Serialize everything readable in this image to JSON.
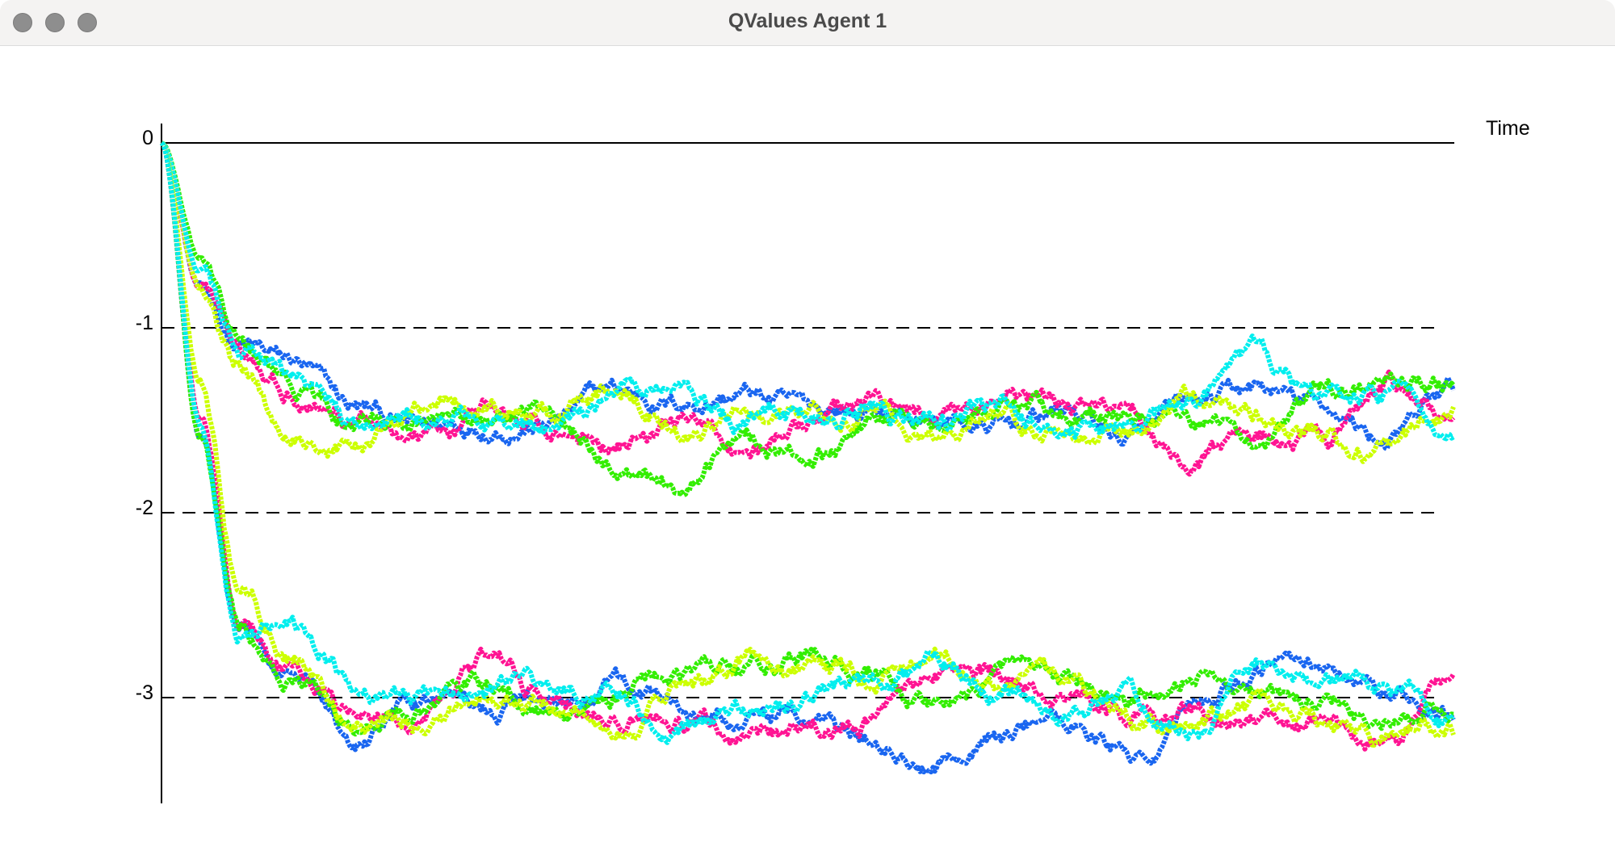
{
  "window": {
    "title": "QValues Agent 1"
  },
  "chart_data": {
    "type": "line",
    "title": "QValues Agent 1",
    "xlabel": "Time",
    "ylabel": "",
    "ylim": [
      -3.55,
      0
    ],
    "y_ticks": [
      {
        "value": 0,
        "label": "0"
      },
      {
        "value": -1,
        "label": "-1"
      },
      {
        "value": -2,
        "label": "-2"
      },
      {
        "value": -3,
        "label": "-3"
      }
    ],
    "dashed_reference_lines": [
      -1,
      -2,
      -3
    ],
    "x_ticks": [],
    "grid": false,
    "legend": "none",
    "series": [
      {
        "color": "#1a66f0",
        "x": [
          0,
          0.03,
          0.06,
          0.1,
          0.15,
          0.2,
          0.25,
          0.3,
          0.35,
          0.4,
          0.45,
          0.5,
          0.55,
          0.6,
          0.65,
          0.7,
          0.75,
          0.8,
          0.85,
          0.9,
          0.95,
          1
        ],
        "y": [
          0,
          -0.8,
          -1.1,
          -1.2,
          -1.45,
          -1.55,
          -1.5,
          -1.5,
          -1.35,
          -1.4,
          -1.35,
          -1.45,
          -1.45,
          -1.5,
          -1.55,
          -1.45,
          -1.6,
          -1.45,
          -1.35,
          -1.45,
          -1.6,
          -1.35
        ]
      },
      {
        "color": "#ff1493",
        "x": [
          0,
          0.03,
          0.06,
          0.1,
          0.15,
          0.2,
          0.25,
          0.3,
          0.35,
          0.4,
          0.45,
          0.5,
          0.55,
          0.6,
          0.65,
          0.7,
          0.75,
          0.8,
          0.85,
          0.9,
          0.95,
          1
        ],
        "y": [
          0,
          -0.8,
          -1.05,
          -1.3,
          -1.45,
          -1.6,
          -1.45,
          -1.55,
          -1.6,
          -1.5,
          -1.65,
          -1.55,
          -1.45,
          -1.5,
          -1.4,
          -1.45,
          -1.5,
          -1.75,
          -1.55,
          -1.6,
          -1.35,
          -1.5
        ]
      },
      {
        "color": "#33ee00",
        "x": [
          0,
          0.03,
          0.06,
          0.1,
          0.15,
          0.2,
          0.25,
          0.3,
          0.35,
          0.4,
          0.45,
          0.5,
          0.55,
          0.6,
          0.65,
          0.7,
          0.75,
          0.8,
          0.85,
          0.9,
          0.95,
          1
        ],
        "y": [
          0,
          -0.65,
          -1.1,
          -1.35,
          -1.55,
          -1.5,
          -1.55,
          -1.45,
          -1.75,
          -1.85,
          -1.55,
          -1.7,
          -1.5,
          -1.5,
          -1.35,
          -1.45,
          -1.5,
          -1.5,
          -1.6,
          -1.4,
          -1.35,
          -1.3
        ]
      },
      {
        "color": "#ccff00",
        "x": [
          0,
          0.03,
          0.06,
          0.1,
          0.15,
          0.2,
          0.25,
          0.3,
          0.35,
          0.4,
          0.45,
          0.5,
          0.55,
          0.6,
          0.65,
          0.7,
          0.75,
          0.8,
          0.85,
          0.9,
          0.95,
          1
        ],
        "y": [
          0,
          -0.75,
          -1.2,
          -1.6,
          -1.6,
          -1.4,
          -1.45,
          -1.5,
          -1.35,
          -1.55,
          -1.45,
          -1.45,
          -1.4,
          -1.55,
          -1.5,
          -1.55,
          -1.5,
          -1.4,
          -1.5,
          -1.6,
          -1.65,
          -1.45
        ]
      },
      {
        "color": "#00eeee",
        "x": [
          0,
          0.03,
          0.06,
          0.1,
          0.15,
          0.2,
          0.25,
          0.3,
          0.35,
          0.4,
          0.45,
          0.5,
          0.55,
          0.6,
          0.65,
          0.7,
          0.75,
          0.8,
          0.85,
          0.9,
          0.95,
          1
        ],
        "y": [
          0,
          -0.7,
          -1.2,
          -1.3,
          -1.55,
          -1.5,
          -1.5,
          -1.55,
          -1.4,
          -1.3,
          -1.5,
          -1.5,
          -1.45,
          -1.5,
          -1.45,
          -1.6,
          -1.5,
          -1.4,
          -1.2,
          -1.45,
          -1.4,
          -1.55
        ]
      },
      {
        "color": "#1a66f0",
        "x": [
          0,
          0.03,
          0.06,
          0.1,
          0.15,
          0.2,
          0.25,
          0.3,
          0.35,
          0.4,
          0.45,
          0.5,
          0.55,
          0.6,
          0.65,
          0.7,
          0.75,
          0.8,
          0.85,
          0.9,
          0.95,
          1
        ],
        "y": [
          0,
          -1.6,
          -2.6,
          -2.9,
          -3.2,
          -3.0,
          -3.05,
          -3.0,
          -2.95,
          -3.05,
          -3.15,
          -3.1,
          -3.2,
          -3.3,
          -3.2,
          -3.1,
          -3.3,
          -3.0,
          -2.8,
          -2.9,
          -3.0,
          -3.1
        ]
      },
      {
        "color": "#ff1493",
        "x": [
          0,
          0.03,
          0.06,
          0.1,
          0.15,
          0.2,
          0.25,
          0.3,
          0.35,
          0.4,
          0.45,
          0.5,
          0.55,
          0.6,
          0.65,
          0.7,
          0.75,
          0.8,
          0.85,
          0.9,
          0.95,
          1
        ],
        "y": [
          0,
          -1.5,
          -2.6,
          -2.85,
          -3.0,
          -3.05,
          -2.8,
          -3.0,
          -3.1,
          -3.1,
          -3.2,
          -3.15,
          -3.1,
          -2.85,
          -2.9,
          -3.0,
          -3.1,
          -3.05,
          -3.1,
          -3.15,
          -3.25,
          -2.9
        ]
      },
      {
        "color": "#33ee00",
        "x": [
          0,
          0.03,
          0.06,
          0.1,
          0.15,
          0.2,
          0.25,
          0.3,
          0.35,
          0.4,
          0.45,
          0.5,
          0.55,
          0.6,
          0.65,
          0.7,
          0.75,
          0.8,
          0.85,
          0.9,
          0.95,
          1
        ],
        "y": [
          0,
          -1.6,
          -2.65,
          -2.9,
          -3.1,
          -3.05,
          -3.0,
          -3.1,
          -3.05,
          -2.85,
          -2.85,
          -2.8,
          -2.9,
          -3.05,
          -2.85,
          -3.0,
          -3.05,
          -2.85,
          -3.0,
          -3.05,
          -3.1,
          -3.05
        ]
      },
      {
        "color": "#ccff00",
        "x": [
          0,
          0.03,
          0.06,
          0.1,
          0.15,
          0.2,
          0.25,
          0.3,
          0.35,
          0.4,
          0.45,
          0.5,
          0.55,
          0.6,
          0.65,
          0.7,
          0.75,
          0.8,
          0.85,
          0.9,
          0.95,
          1
        ],
        "y": [
          0,
          -1.3,
          -2.4,
          -2.75,
          -3.15,
          -3.1,
          -3.0,
          -3.05,
          -3.2,
          -3.0,
          -2.8,
          -2.85,
          -2.9,
          -2.75,
          -2.95,
          -2.95,
          -3.15,
          -3.1,
          -3.05,
          -3.1,
          -3.2,
          -3.2
        ]
      },
      {
        "color": "#00eeee",
        "x": [
          0,
          0.03,
          0.06,
          0.1,
          0.15,
          0.2,
          0.25,
          0.3,
          0.35,
          0.4,
          0.45,
          0.5,
          0.55,
          0.6,
          0.65,
          0.7,
          0.75,
          0.8,
          0.85,
          0.9,
          0.95,
          1
        ],
        "y": [
          0,
          -1.55,
          -2.7,
          -2.65,
          -2.95,
          -3.05,
          -2.95,
          -3.0,
          -2.95,
          -3.2,
          -3.05,
          -3.0,
          -2.9,
          -2.8,
          -2.95,
          -3.1,
          -3.05,
          -3.2,
          -2.8,
          -2.95,
          -3.0,
          -3.15
        ]
      }
    ]
  }
}
